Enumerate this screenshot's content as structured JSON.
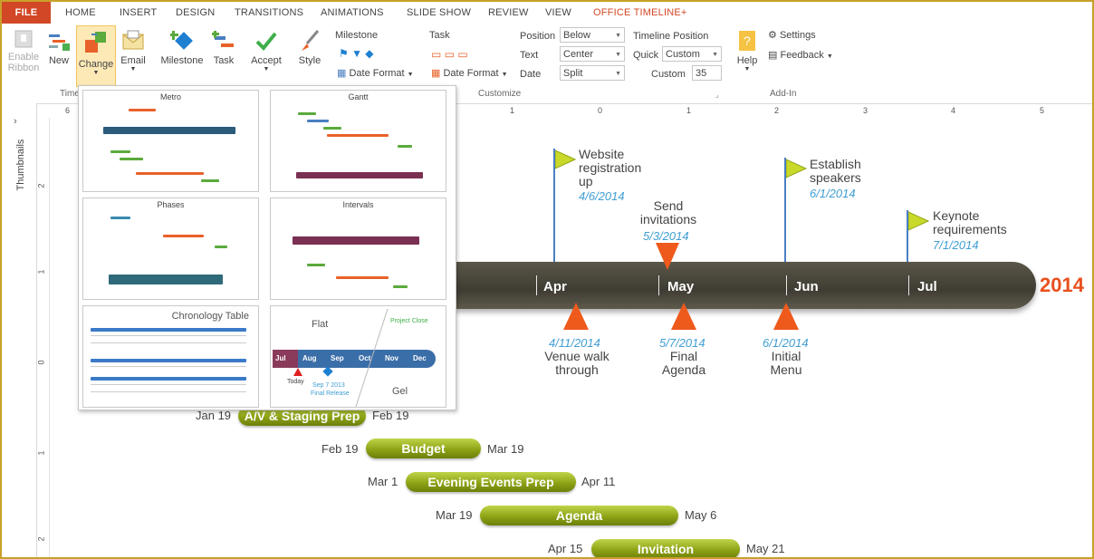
{
  "tabs": [
    "FILE",
    "HOME",
    "INSERT",
    "DESIGN",
    "TRANSITIONS",
    "ANIMATIONS",
    "SLIDE SHOW",
    "REVIEW",
    "VIEW",
    "OFFICE TIMELINE+"
  ],
  "ribbon": {
    "enable_ribbon": [
      "Enable",
      "Ribbon"
    ],
    "new": "New",
    "change": "Change",
    "email": "Email",
    "milestone": "Milestone",
    "task": "Task",
    "accept": "Accept",
    "style": "Style",
    "milestone_group": "Milestone",
    "task_group": "Task",
    "date_format": "Date Format",
    "position_label": "Position",
    "position_value": "Below",
    "text_label": "Text",
    "text_value": "Center",
    "date_label": "Date",
    "date_value": "Split",
    "timeline_position": "Timeline Position",
    "quick_label": "Quick",
    "quick_value": "Custom",
    "custom_label": "Custom",
    "custom_value": "35",
    "help": "Help",
    "settings": "Settings",
    "feedback": "Feedback",
    "group_time": "Time",
    "group_customize": "Customize",
    "group_addin": "Add-In"
  },
  "ruler": [
    "6",
    "1",
    "0",
    "1",
    "2",
    "3",
    "4",
    "5"
  ],
  "vruler": [
    "2",
    "1",
    "0",
    "1",
    "2"
  ],
  "sidebar": {
    "thumbnails": "Thumbnails"
  },
  "gallery": {
    "metro": "Metro",
    "gantt": "Gantt",
    "phases": "Phases",
    "intervals": "Intervals",
    "chronology": "Chronology Table",
    "flat": "Flat",
    "gel": "Gel",
    "flat_months": [
      "Jul",
      "Aug",
      "Sep",
      "Oct",
      "Nov",
      "Dec"
    ],
    "flat_today": "Today",
    "flat_sep": "Sep 7 2013",
    "flat_release": "Final Release",
    "flat_project_close": "Project Close"
  },
  "timeline": {
    "year": "2014",
    "months": [
      "Apr",
      "May",
      "Jun",
      "Jul"
    ],
    "milestones_above": [
      {
        "title": [
          "Website",
          "registration",
          "up"
        ],
        "date": "4/6/2014"
      },
      {
        "title": [
          "Send",
          "invitations"
        ],
        "date": "5/3/2014"
      },
      {
        "title": [
          "Establish",
          "speakers"
        ],
        "date": "6/1/2014"
      },
      {
        "title": [
          "Keynote",
          "requirements"
        ],
        "date": "7/1/2014"
      }
    ],
    "milestones_below": [
      {
        "date": "4/11/2014",
        "title": [
          "Venue walk",
          "through"
        ]
      },
      {
        "date": "5/7/2014",
        "title": [
          "Final",
          "Agenda"
        ]
      },
      {
        "date": "6/1/2014",
        "title": [
          "Initial",
          "Menu"
        ]
      }
    ],
    "tasks": [
      {
        "name": "A/V & Staging Prep",
        "start": "Jan 19",
        "end": "Feb 19"
      },
      {
        "name": "Budget",
        "start": "Feb 19",
        "end": "Mar 19"
      },
      {
        "name": "Evening Events Prep",
        "start": "Mar 1",
        "end": "Apr 11"
      },
      {
        "name": "Agenda",
        "start": "Mar 19",
        "end": "May 6"
      },
      {
        "name": "Invitation",
        "start": "Apr 15",
        "end": "May 21"
      }
    ],
    "partial_letter": "t"
  },
  "colors": {
    "accent": "#d24726",
    "milestone_date": "#3f9ed3",
    "task": "#8ea315",
    "flag": "#c9d92a",
    "triangle": "#ee5a1c"
  }
}
